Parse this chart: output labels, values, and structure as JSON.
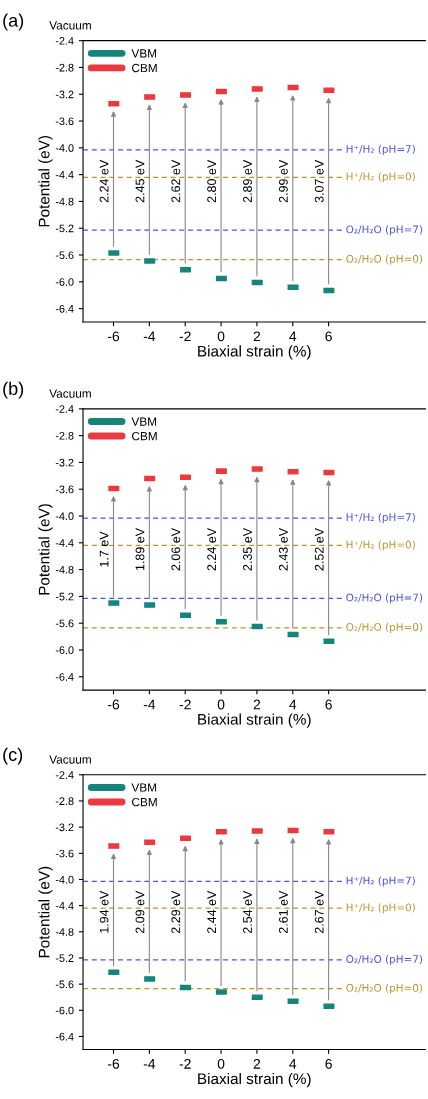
{
  "chart_data": [
    {
      "type": "scatter",
      "title": "(a)",
      "xlabel": "Biaxial strain (%)",
      "ylabel": "Potential (eV)",
      "series": [
        {
          "name": "VBM",
          "color": "#15857c",
          "x": [
            -6,
            -4,
            -2,
            0,
            2,
            4,
            6
          ],
          "values": [
            -5.57,
            -5.69,
            -5.82,
            -5.95,
            -6.01,
            -6.08,
            -6.13
          ]
        },
        {
          "name": "CBM",
          "color": "#ea3a3f",
          "x": [
            -6,
            -4,
            -2,
            0,
            2,
            4,
            6
          ],
          "values": [
            -3.34,
            -3.24,
            -3.21,
            -3.16,
            -3.12,
            -3.1,
            -3.14
          ]
        }
      ],
      "xlim": [
        -7.7,
        11.4
      ],
      "xticks": [
        -6,
        -4,
        -2,
        0,
        2,
        4,
        6
      ],
      "ylim": [
        -6.6,
        -2.4
      ],
      "yticks": [
        {
          "value": -2.4,
          "label": "-2.4"
        },
        {
          "value": -2.8,
          "label": "-2.8"
        },
        {
          "value": -3.2,
          "label": "-3.2"
        },
        {
          "value": -3.6,
          "label": "-3.6"
        },
        {
          "value": -4.0,
          "label": "-4.0"
        },
        {
          "value": -4.4,
          "label": "-4.4"
        },
        {
          "value": -4.8,
          "label": "-4.8"
        },
        {
          "value": -5.2,
          "label": "-5.2"
        },
        {
          "value": -5.6,
          "label": "-5.6"
        },
        {
          "value": -6.0,
          "label": "-6.0"
        },
        {
          "value": -6.4,
          "label": "-6.4"
        }
      ],
      "ref_lines": [
        {
          "axis": "y",
          "value": -4.03,
          "color": "#4a55e0",
          "line_style": "dashed"
        },
        {
          "axis": "y",
          "value": -4.44,
          "color": "#b8962e",
          "line_style": "dashed"
        },
        {
          "axis": "y",
          "value": -5.23,
          "color": "#4a55e0",
          "line_style": "dashed"
        },
        {
          "axis": "y",
          "value": -5.67,
          "color": "#b8962e",
          "line_style": "dashed"
        }
      ],
      "annotations": [
        "Vacuum",
        {
          "text": "2.24 eV",
          "x": -6,
          "y": -4.5
        },
        {
          "text": "2.45 eV",
          "x": -4,
          "y": -4.5
        },
        {
          "text": "2.62 eV",
          "x": -2,
          "y": -4.5
        },
        {
          "text": "2.80 eV",
          "x": 0,
          "y": -4.5
        },
        {
          "text": "2.89 eV",
          "x": 2,
          "y": -4.5
        },
        {
          "text": "2.99 eV",
          "x": 4,
          "y": -4.5
        },
        {
          "text": "3.07 eV",
          "x": 6,
          "y": -4.5
        },
        {
          "text": "H⁺/H₂ (pH=7)",
          "x": 6.9,
          "y": -4.03
        },
        {
          "text": "H⁺/H₂ (pH=0)",
          "x": 6.9,
          "y": -4.44
        },
        {
          "text": "O₂/H₂O (pH=7)",
          "x": 6.9,
          "y": -5.23
        },
        {
          "text": "O₂/H₂O (pH=0)",
          "x": 6.9,
          "y": -5.67
        }
      ],
      "legend": "top left",
      "grid": false
    },
    {
      "type": "scatter",
      "title": "(b)",
      "xlabel": "Biaxial strain (%)",
      "ylabel": "Potential (eV)",
      "series": [
        {
          "name": "VBM",
          "color": "#15857c",
          "x": [
            -6,
            -4,
            -2,
            0,
            2,
            4,
            6
          ],
          "values": [
            -5.3,
            -5.33,
            -5.48,
            -5.58,
            -5.65,
            -5.77,
            -5.87
          ]
        },
        {
          "name": "CBM",
          "color": "#ea3a3f",
          "x": [
            -6,
            -4,
            -2,
            0,
            2,
            4,
            6
          ],
          "values": [
            -3.59,
            -3.44,
            -3.42,
            -3.33,
            -3.3,
            -3.34,
            -3.35
          ]
        }
      ],
      "xlim": [
        -7.7,
        11.4
      ],
      "xticks": [
        -6,
        -4,
        -2,
        0,
        2,
        4,
        6
      ],
      "ylim": [
        -6.6,
        -2.4
      ],
      "yticks": [
        {
          "value": -2.4,
          "label": "-2.4"
        },
        {
          "value": -2.8,
          "label": "-2.8"
        },
        {
          "value": -3.2,
          "label": "-3.2"
        },
        {
          "value": -3.6,
          "label": "-3.6"
        },
        {
          "value": -4.0,
          "label": "-4.0"
        },
        {
          "value": -4.4,
          "label": "-4.4"
        },
        {
          "value": -4.8,
          "label": "-4.8"
        },
        {
          "value": -5.2,
          "label": "-5.2"
        },
        {
          "value": -5.6,
          "label": "-5.6"
        },
        {
          "value": -6.0,
          "label": "-6.0"
        },
        {
          "value": -6.4,
          "label": "-6.4"
        }
      ],
      "ref_lines": [
        {
          "axis": "y",
          "value": -4.03,
          "color": "#4a55e0",
          "line_style": "dashed"
        },
        {
          "axis": "y",
          "value": -4.44,
          "color": "#b8962e",
          "line_style": "dashed"
        },
        {
          "axis": "y",
          "value": -5.23,
          "color": "#4a55e0",
          "line_style": "dashed"
        },
        {
          "axis": "y",
          "value": -5.67,
          "color": "#b8962e",
          "line_style": "dashed"
        }
      ],
      "annotations": [
        "Vacuum",
        {
          "text": "1.7 eV",
          "x": -6,
          "y": -4.5
        },
        {
          "text": "1.89 eV",
          "x": -4,
          "y": -4.5
        },
        {
          "text": "2.06 eV",
          "x": -2,
          "y": -4.5
        },
        {
          "text": "2.24 eV",
          "x": 0,
          "y": -4.5
        },
        {
          "text": "2.35 eV",
          "x": 2,
          "y": -4.5
        },
        {
          "text": "2.43 eV",
          "x": 4,
          "y": -4.5
        },
        {
          "text": "2.52 eV",
          "x": 6,
          "y": -4.5
        },
        {
          "text": "H⁺/H₂ (pH=7)",
          "x": 6.9,
          "y": -4.03
        },
        {
          "text": "H⁺/H₂ (pH=0)",
          "x": 6.9,
          "y": -4.44
        },
        {
          "text": "O₂/H₂O (pH=7)",
          "x": 6.9,
          "y": -5.23
        },
        {
          "text": "O₂/H₂O (pH=0)",
          "x": 6.9,
          "y": -5.67
        }
      ],
      "legend": "top left",
      "grid": false
    },
    {
      "type": "scatter",
      "title": "(c)",
      "xlabel": "Biaxial strain (%)",
      "ylabel": "Potential (eV)",
      "series": [
        {
          "name": "VBM",
          "color": "#15857c",
          "x": [
            -6,
            -4,
            -2,
            0,
            2,
            4,
            6
          ],
          "values": [
            -5.42,
            -5.52,
            -5.65,
            -5.72,
            -5.8,
            -5.86,
            -5.94
          ]
        },
        {
          "name": "CBM",
          "color": "#ea3a3f",
          "x": [
            -6,
            -4,
            -2,
            0,
            2,
            4,
            6
          ],
          "values": [
            -3.49,
            -3.43,
            -3.37,
            -3.27,
            -3.26,
            -3.25,
            -3.27
          ]
        }
      ],
      "xlim": [
        -7.7,
        11.4
      ],
      "xticks": [
        -6,
        -4,
        -2,
        0,
        2,
        4,
        6
      ],
      "ylim": [
        -6.6,
        -2.4
      ],
      "yticks": [
        {
          "value": -2.4,
          "label": "-2.4"
        },
        {
          "value": -2.8,
          "label": "-2.8"
        },
        {
          "value": -3.2,
          "label": "-3.2"
        },
        {
          "value": -3.6,
          "label": "-3.6"
        },
        {
          "value": -4.0,
          "label": "-4.0"
        },
        {
          "value": -4.4,
          "label": "-4.4"
        },
        {
          "value": -4.8,
          "label": "-4.8"
        },
        {
          "value": -5.2,
          "label": "-5.2"
        },
        {
          "value": -5.6,
          "label": "-5.6"
        },
        {
          "value": -6.0,
          "label": "-6.0"
        },
        {
          "value": -6.4,
          "label": "-6.4"
        }
      ],
      "ref_lines": [
        {
          "axis": "y",
          "value": -4.03,
          "color": "#4a55e0",
          "line_style": "dashed"
        },
        {
          "axis": "y",
          "value": -4.44,
          "color": "#b8962e",
          "line_style": "dashed"
        },
        {
          "axis": "y",
          "value": -5.23,
          "color": "#4a55e0",
          "line_style": "dashed"
        },
        {
          "axis": "y",
          "value": -5.67,
          "color": "#b8962e",
          "line_style": "dashed"
        }
      ],
      "annotations": [
        "Vacuum",
        {
          "text": "1.94 eV",
          "x": -6,
          "y": -4.5
        },
        {
          "text": "2.09 eV",
          "x": -4,
          "y": -4.5
        },
        {
          "text": "2.29 eV",
          "x": -2,
          "y": -4.5
        },
        {
          "text": "2.44 eV",
          "x": 0,
          "y": -4.5
        },
        {
          "text": "2.54 eV",
          "x": 2,
          "y": -4.5
        },
        {
          "text": "2.61 eV",
          "x": 4,
          "y": -4.5
        },
        {
          "text": "2.67 eV",
          "x": 6,
          "y": -4.5
        },
        {
          "text": "H⁺/H₂ (pH=7)",
          "x": 6.9,
          "y": -4.03
        },
        {
          "text": "H⁺/H₂ (pH=0)",
          "x": 6.9,
          "y": -4.44
        },
        {
          "text": "O₂/H₂O (pH=7)",
          "x": 6.9,
          "y": -5.23
        },
        {
          "text": "O₂/H₂O (pH=0)",
          "x": 6.9,
          "y": -5.67
        }
      ],
      "legend": "top left",
      "grid": false
    }
  ]
}
